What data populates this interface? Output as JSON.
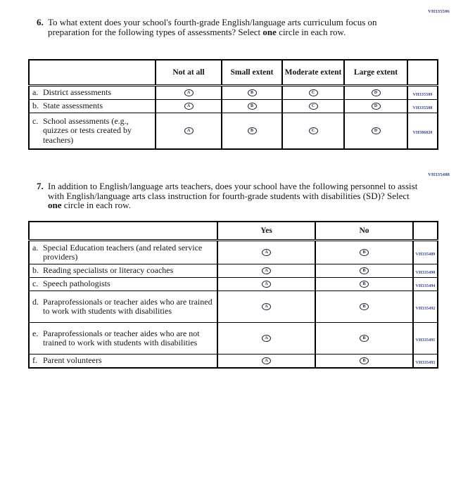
{
  "colors": {
    "text": "#141414",
    "code_accent": "#31408a",
    "border": "#000000",
    "background": "#ffffff"
  },
  "q6": {
    "ref_code": "VH335506",
    "number": "6.",
    "prompt_before": "To what extent does your school's fourth-grade English/language arts curriculum focus on preparation for the following types of assessments? Select",
    "prompt_bold": "one",
    "prompt_after": "circle in each row.",
    "table": {
      "headers": [
        "Not at all",
        "Small extent",
        "Moderate extent",
        "Large extent"
      ],
      "rows": [
        {
          "letter": "a.",
          "label": "District assessments",
          "options": [
            "A",
            "B",
            "C",
            "D"
          ],
          "code": "VH335509"
        },
        {
          "letter": "b.",
          "label": "State assessments",
          "options": [
            "A",
            "B",
            "C",
            "D"
          ],
          "code": "VH335508"
        },
        {
          "letter": "c.",
          "label": "School assessments (e.g., quizzes or tests created by teachers)",
          "options": [
            "A",
            "B",
            "C",
            "D"
          ],
          "code": "VH586820"
        }
      ]
    }
  },
  "q7": {
    "ref_code": "VH335488",
    "number": "7.",
    "prompt_before": "In addition to English/language arts teachers, does your school have the following personnel to assist with English/language arts class instruction for fourth-grade students with disabilities (SD)? Select",
    "prompt_bold": "one",
    "prompt_after": "circle in each row.",
    "table": {
      "headers": [
        "Yes",
        "No"
      ],
      "rows": [
        {
          "letter": "a.",
          "label": "Special Education teachers (and related service providers)",
          "options": [
            "A",
            "B"
          ],
          "code": "VH335489"
        },
        {
          "letter": "b.",
          "label": "Reading specialists or literacy coaches",
          "options": [
            "A",
            "B"
          ],
          "code": "VH335490"
        },
        {
          "letter": "c.",
          "label": "Speech pathologists",
          "options": [
            "A",
            "B"
          ],
          "code": "VH335494"
        },
        {
          "letter": "d.",
          "label": "Paraprofessionals or teacher aides who are trained to work with students with disabilities",
          "options": [
            "A",
            "B"
          ],
          "code": "VH335492"
        },
        {
          "letter": "e.",
          "label": "Paraprofessionals or teacher aides who are not trained to work with students with disabilities",
          "options": [
            "A",
            "B"
          ],
          "code": "VH335491"
        },
        {
          "letter": "f.",
          "label": "Parent volunteers",
          "options": [
            "A",
            "B"
          ],
          "code": "VH335493"
        }
      ]
    }
  }
}
